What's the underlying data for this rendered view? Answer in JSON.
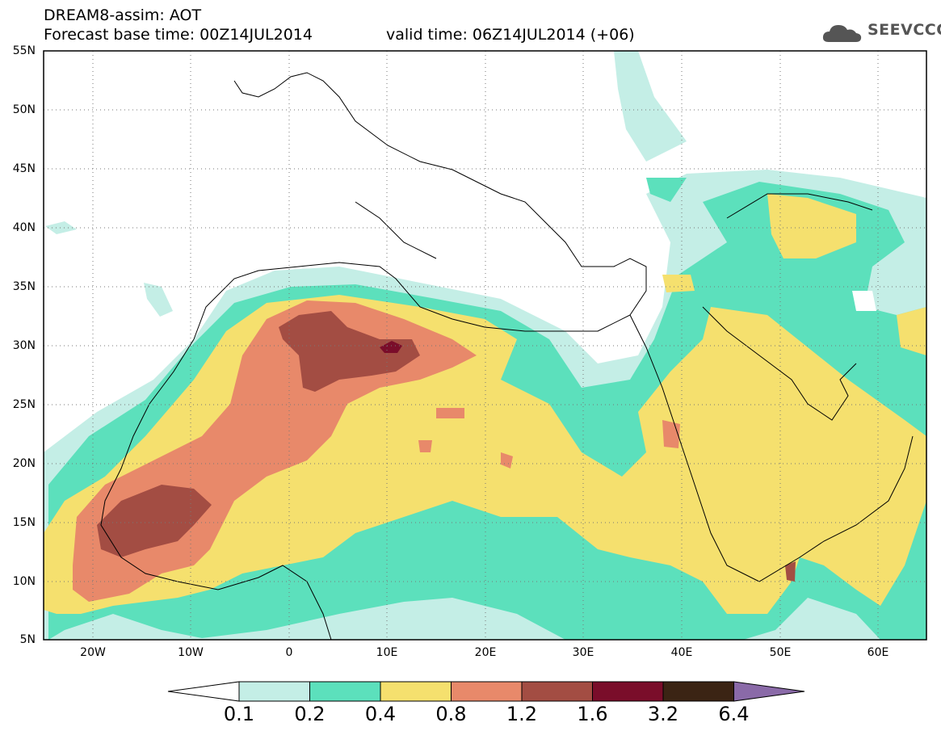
{
  "header": {
    "title": "DREAM8-assim: AOT",
    "base_time": "Forecast base time: 00Z14JUL2014",
    "valid_time": "valid time: 06Z14JUL2014 (+06)"
  },
  "logo": {
    "text": "SEEVCCC",
    "icon": "cloud-logo-icon"
  },
  "map": {
    "projection": "lat-lon",
    "lon_range": [
      -25,
      65
    ],
    "lat_range": [
      5,
      55
    ],
    "lat_labels": [
      "55N",
      "50N",
      "45N",
      "40N",
      "35N",
      "30N",
      "25N",
      "20N",
      "15N",
      "10N",
      "5N"
    ],
    "lon_labels": [
      "20W",
      "10W",
      "0",
      "10E",
      "20E",
      "30E",
      "40E",
      "50E",
      "60E"
    ],
    "grid": "dotted",
    "field": "Aerosol optical thickness (dust)"
  },
  "colorbar": {
    "labels": [
      "0.1",
      "0.2",
      "0.4",
      "0.8",
      "1.2",
      "1.6",
      "3.2",
      "6.4"
    ],
    "colors": [
      "#c4eee6",
      "#5ce0bc",
      "#f5e06e",
      "#e8896a",
      "#a34d43",
      "#7a0d2a",
      "#3b2414",
      "#8a6aa8"
    ],
    "under_color": "#ffffff"
  }
}
